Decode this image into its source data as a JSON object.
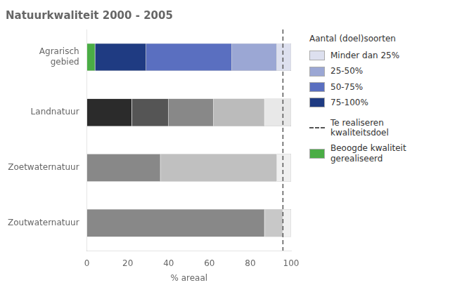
{
  "chart_data": {
    "type": "bar",
    "orientation": "horizontal",
    "stacked": true,
    "title": "Natuurkwaliteit 2000 - 2005",
    "xlabel": "% areaal",
    "categories": [
      "Agrarisch\ngebied",
      "Landnatuur",
      "Zoetwaternatuur",
      "Zoutwaternatuur"
    ],
    "series": [
      {
        "values": [
          4,
          22,
          36,
          87
        ],
        "colors": [
          "#4aad45",
          "#2b2b2b",
          "#888888",
          "#888888"
        ]
      },
      {
        "values": [
          25,
          18,
          57,
          9
        ],
        "colors": [
          "#1f3b82",
          "#555555",
          "#c0c0c0",
          "#c8c8c8"
        ]
      },
      {
        "values": [
          42,
          22,
          7,
          4
        ],
        "colors": [
          "#5a6fc0",
          "#888888",
          "#f0f0f0",
          "#f0f0f0"
        ]
      },
      {
        "values": [
          22,
          25,
          0,
          0
        ],
        "colors": [
          "#9ba7d4",
          "#bbbbbb",
          "#ffffff",
          "#ffffff"
        ]
      },
      {
        "values": [
          7,
          13,
          0,
          0
        ],
        "colors": [
          "#dde0ef",
          "#e8e8e8",
          "#ffffff",
          "#ffffff"
        ]
      }
    ],
    "xlim": [
      0,
      100
    ],
    "xticks": [
      0,
      20,
      40,
      60,
      80,
      100
    ],
    "grid": false,
    "annotations": [
      {
        "type": "vline",
        "x": 96,
        "color": "#555555",
        "line_style": "dashed"
      }
    ],
    "legend_title": "Aantal (doel)soorten",
    "legend_items": [
      {
        "label": "Minder dan 25%",
        "color": "#dde0ef"
      },
      {
        "label": "25-50%",
        "color": "#9ba7d4"
      },
      {
        "label": "50-75%",
        "color": "#5a6fc0"
      },
      {
        "label": "75-100%",
        "color": "#1f3b82"
      },
      {
        "label": "Te realiseren kwaliteitsdoel",
        "color": "#555555",
        "line_style": "dashed"
      },
      {
        "label": "Beoogde kwaliteit\ngerealiseerd",
        "color": "#4aad45"
      }
    ]
  }
}
